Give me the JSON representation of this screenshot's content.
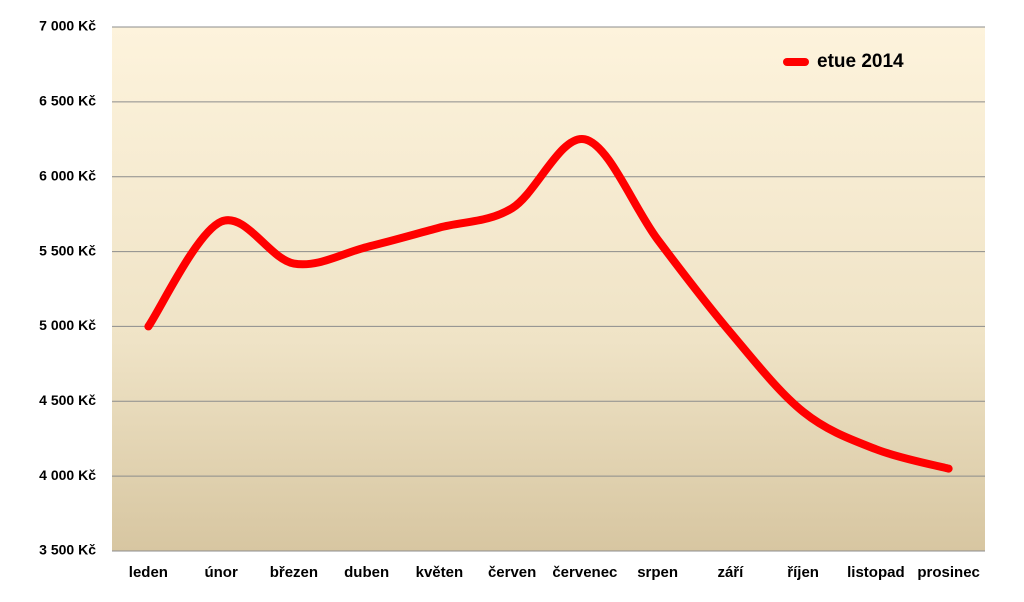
{
  "chart_data": {
    "type": "line",
    "categories": [
      "leden",
      "únor",
      "březen",
      "duben",
      "květen",
      "červen",
      "červenec",
      "srpen",
      "září",
      "říjen",
      "listopad",
      "prosinec"
    ],
    "series": [
      {
        "name": "etue 2014",
        "color": "#ff0000",
        "values": [
          5000,
          5700,
          5420,
          5530,
          5660,
          5790,
          6250,
          5580,
          4960,
          4430,
          4180,
          4050
        ]
      }
    ],
    "ylim": [
      3500,
      7000
    ],
    "yticks": [
      {
        "value": 3500,
        "label": "3 500 Kč"
      },
      {
        "value": 4000,
        "label": "4 000 Kč"
      },
      {
        "value": 4500,
        "label": "4 500 Kč"
      },
      {
        "value": 5000,
        "label": "5 000 Kč"
      },
      {
        "value": 5500,
        "label": "5 500 Kč"
      },
      {
        "value": 6000,
        "label": "6 000 Kč"
      },
      {
        "value": 6500,
        "label": "6 500 Kč"
      },
      {
        "value": 7000,
        "label": "7 000 Kč"
      }
    ],
    "grid": true,
    "smooth": true,
    "legend": "top-right"
  }
}
